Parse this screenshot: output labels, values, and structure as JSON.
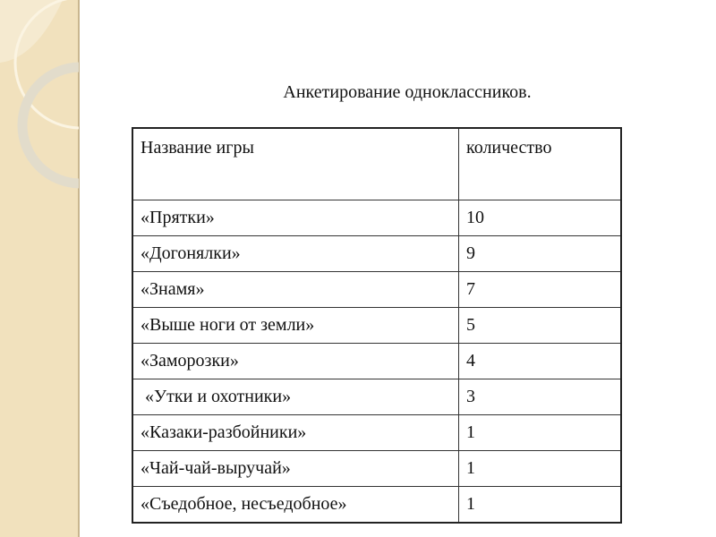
{
  "title": "Анкетирование одноклассников.",
  "table": {
    "headers": [
      "Название игры",
      "количество"
    ],
    "rows": [
      [
        "«Прятки»",
        "10"
      ],
      [
        "«Догонялки»",
        "9"
      ],
      [
        "«Знамя»",
        "7"
      ],
      [
        "«Выше ноги от земли»",
        "5"
      ],
      [
        "«Заморозки»",
        "4"
      ],
      [
        " «Утки и охотники»",
        "3"
      ],
      [
        "«Казаки-разбойники»",
        "1"
      ],
      [
        "«Чай-чай-выручай»",
        "1"
      ],
      [
        "«Съедобное, несъедобное»",
        "1"
      ]
    ]
  },
  "colors": {
    "strip": "#f1e1bd",
    "strip_border": "#c9b68f"
  }
}
